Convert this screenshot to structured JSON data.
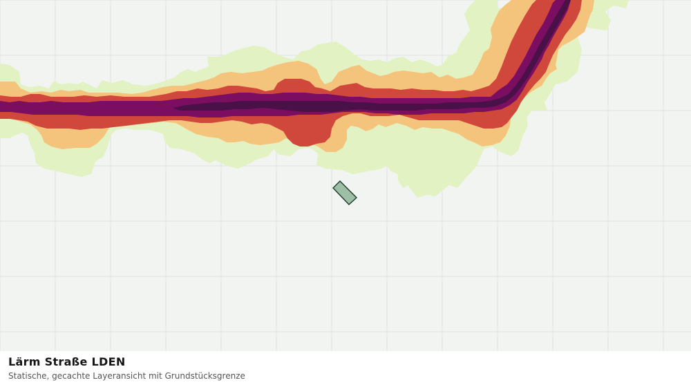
{
  "map": {
    "background": "#f2f4f2",
    "grid_color": "#dfe2df",
    "noise_bands": [
      {
        "level": 1,
        "color": "#e3f2c2"
      },
      {
        "level": 2,
        "color": "#f4c47d"
      },
      {
        "level": 3,
        "color": "#d0473c"
      },
      {
        "level": 4,
        "color": "#7b0e61"
      },
      {
        "level": 5,
        "color": "#4a1048"
      }
    ],
    "parcel": {
      "fill": "#9fbea6",
      "stroke": "#1b3b2b"
    }
  },
  "caption": {
    "title": "Lärm Straße LDEN",
    "subtitle": "Statische, gecachte Layeransicht mit Grundstücksgrenze"
  }
}
